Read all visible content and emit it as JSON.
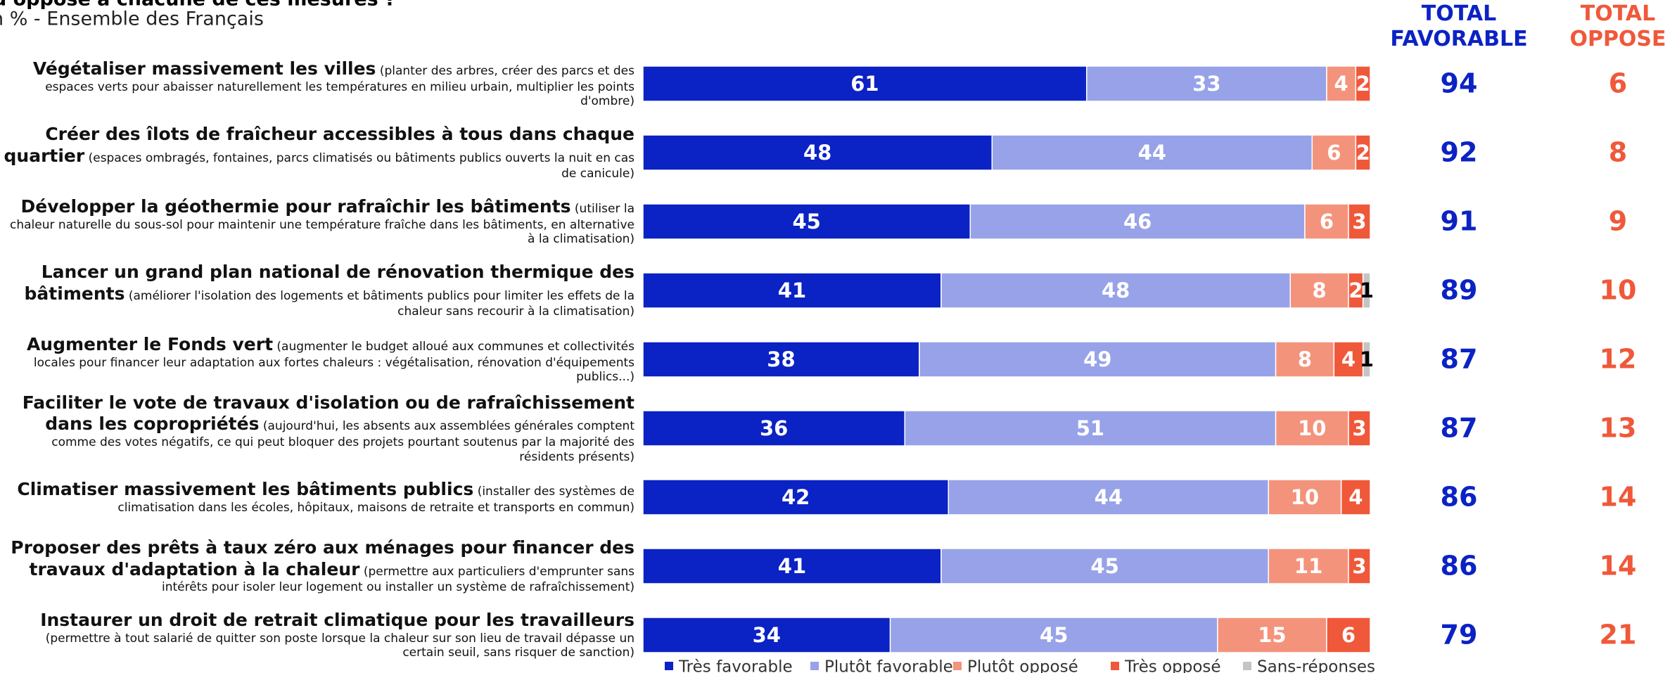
{
  "chart_data": {
    "type": "stacked-bar",
    "title": "u opposé à chacune de ces mesures ?",
    "subtitle": "n % - Ensemble des Français",
    "categories": [
      "Végétaliser massivement les villes",
      "Créer des îlots de fraîcheur accessibles à tous dans chaque quartier",
      "Développer la géothermie pour rafraîchir les bâtiments",
      "Lancer un grand plan national de rénovation thermique des bâtiments",
      "Augmenter le Fonds vert",
      "Faciliter le vote de travaux d'isolation ou de rafraîchissement dans les copropriétés",
      "Climatiser massivement les bâtiments publics",
      "Proposer des prêts à taux zéro aux ménages pour financer des travaux d'adaptation à la chaleur",
      "Instaurer un droit de retrait climatique pour les travailleurs"
    ],
    "category_details": [
      "(planter des arbres, créer des parcs et des espaces verts pour abaisser naturellement les températures en milieu urbain, multiplier les points d'ombre)",
      "(espaces ombragés, fontaines, parcs climatisés ou bâtiments publics ouverts la nuit en cas de canicule)",
      "(utiliser la chaleur naturelle du sous-sol pour maintenir une température fraîche dans les bâtiments, en alternative à la climatisation)",
      "(améliorer l'isolation des logements et bâtiments publics pour limiter les effets de la chaleur sans recourir à la climatisation)",
      "(augmenter le budget alloué aux communes et collectivités locales pour financer leur adaptation aux fortes chaleurs : végétalisation, rénovation d'équipements publics...)",
      "(aujourd'hui, les absents aux assemblées générales comptent comme des votes négatifs, ce qui peut bloquer des projets pourtant soutenus par la majorité des résidents présents)",
      "(installer des systèmes de climatisation dans les écoles, hôpitaux, maisons de retraite et transports en commun)",
      "(permettre aux particuliers d'emprunter sans intérêts pour isoler leur logement ou installer un système de  rafraîchissement)",
      "(permettre à tout salarié de quitter son poste lorsque la chaleur sur son lieu de travail dépasse un certain seuil, sans risquer de sanction)"
    ],
    "series": [
      {
        "name": "Très favorable",
        "color": "#0b22c4",
        "values": [
          61,
          48,
          45,
          41,
          38,
          36,
          42,
          41,
          34
        ]
      },
      {
        "name": "Plutôt favorable",
        "color": "#97a2e8",
        "values": [
          33,
          44,
          46,
          48,
          49,
          51,
          44,
          45,
          45
        ]
      },
      {
        "name": "Plutôt opposé",
        "color": "#f4937c",
        "values": [
          4,
          6,
          6,
          8,
          8,
          10,
          10,
          11,
          15
        ]
      },
      {
        "name": "Très opposé",
        "color": "#f0583a",
        "values": [
          2,
          2,
          3,
          2,
          4,
          3,
          4,
          3,
          6
        ]
      },
      {
        "name": "Sans-réponses",
        "color": "#c4c4c4",
        "values": [
          null,
          null,
          null,
          1,
          1,
          null,
          null,
          null,
          null
        ]
      }
    ],
    "xlim": [
      0,
      100
    ],
    "totals": [
      {
        "name": "TOTAL FAVORABLE",
        "color": "#0b22c4",
        "values": [
          94,
          92,
          91,
          89,
          87,
          87,
          86,
          86,
          79
        ]
      },
      {
        "name": "TOTAL OPPOSE",
        "color": "#f0583a",
        "values": [
          6,
          8,
          9,
          10,
          12,
          13,
          14,
          14,
          21
        ]
      }
    ]
  }
}
